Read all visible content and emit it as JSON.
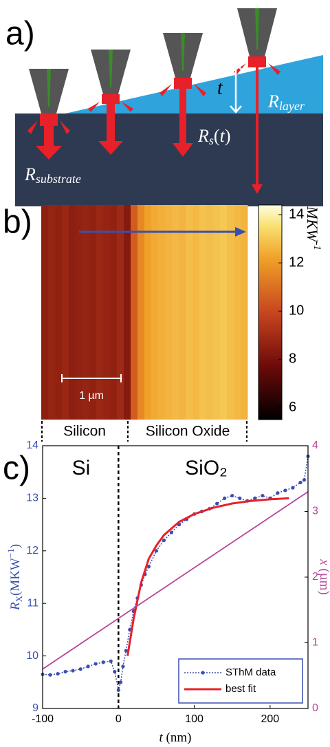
{
  "diagram": {
    "panel_label": "a)",
    "thickness_label": "t",
    "layer_label": [
      "R",
      "layer"
    ],
    "sample_label": [
      "R",
      "s",
      "(",
      "t",
      ")"
    ],
    "substrate_label": [
      "R",
      "substrate"
    ]
  },
  "chart_data": [
    {
      "type": "heatmap",
      "panel_label": "b)",
      "columns": [
        8.5,
        8.7,
        8.6,
        8.8,
        8.5,
        8.6,
        8.7,
        8.6,
        8.8,
        8.7,
        8.6,
        8.9,
        8.3,
        10.5,
        11.6,
        12.2,
        12.4,
        12.5,
        12.6,
        12.7,
        12.6,
        12.8,
        12.7,
        12.9,
        12.8,
        12.9,
        13.0,
        12.8,
        12.7,
        12.6
      ],
      "clim": [
        5.5,
        14.4
      ],
      "cticks": [
        6,
        8,
        10,
        12,
        14
      ],
      "colorbar_label": [
        "MKW",
        "-1"
      ],
      "scalebar_label": "1 µm",
      "regions": [
        "Silicon",
        "Silicon Oxide"
      ]
    },
    {
      "type": "line",
      "panel_label": "c)",
      "annotations": [
        "Si",
        "SiO₂"
      ],
      "xlabel": [
        "t",
        " (nm)"
      ],
      "ylabel": [
        "R",
        "X",
        "(MKW",
        "−1",
        ")"
      ],
      "y2label": [
        "x",
        " (µm)"
      ],
      "xlim": [
        -100,
        250
      ],
      "xticks": [
        -100,
        0,
        100,
        200
      ],
      "ylim": [
        9,
        14
      ],
      "yticks": [
        9,
        10,
        11,
        12,
        13,
        14
      ],
      "y2lim": [
        0,
        4
      ],
      "y2ticks": [
        0,
        1,
        2,
        3,
        4
      ],
      "vline": 0,
      "legend": "lower right",
      "series": [
        {
          "name": "SThM data",
          "color": "#3a4fb0",
          "style": "dotted-markers",
          "x": [
            -100,
            -90,
            -80,
            -70,
            -60,
            -50,
            -40,
            -30,
            -20,
            -10,
            -5,
            0,
            3,
            6,
            10,
            15,
            20,
            25,
            30,
            35,
            40,
            50,
            60,
            70,
            80,
            90,
            100,
            110,
            120,
            130,
            140,
            150,
            160,
            170,
            180,
            190,
            200,
            210,
            220,
            230,
            240,
            245,
            250
          ],
          "values": [
            9.65,
            9.64,
            9.66,
            9.7,
            9.72,
            9.75,
            9.8,
            9.85,
            9.88,
            9.9,
            9.7,
            9.35,
            9.5,
            9.8,
            10.1,
            10.5,
            10.85,
            11.1,
            11.35,
            11.55,
            11.7,
            12.0,
            12.2,
            12.35,
            12.5,
            12.6,
            12.7,
            12.75,
            12.8,
            12.9,
            13.0,
            13.05,
            13.0,
            12.95,
            13.0,
            13.05,
            13.0,
            13.1,
            13.15,
            13.2,
            13.3,
            13.35,
            13.8
          ]
        },
        {
          "name": "best fit",
          "color": "#e8202a",
          "style": "thick",
          "x": [
            12,
            20,
            30,
            40,
            50,
            60,
            80,
            100,
            125,
            150,
            175,
            200,
            225
          ],
          "values": [
            10.0,
            10.7,
            11.4,
            11.85,
            12.1,
            12.3,
            12.55,
            12.7,
            12.82,
            12.9,
            12.95,
            12.98,
            13.0
          ]
        },
        {
          "color": "#b5449c",
          "style": "thin",
          "axis": "y2",
          "x": [
            -100,
            250
          ],
          "values": [
            0.6,
            3.3
          ]
        }
      ]
    }
  ]
}
